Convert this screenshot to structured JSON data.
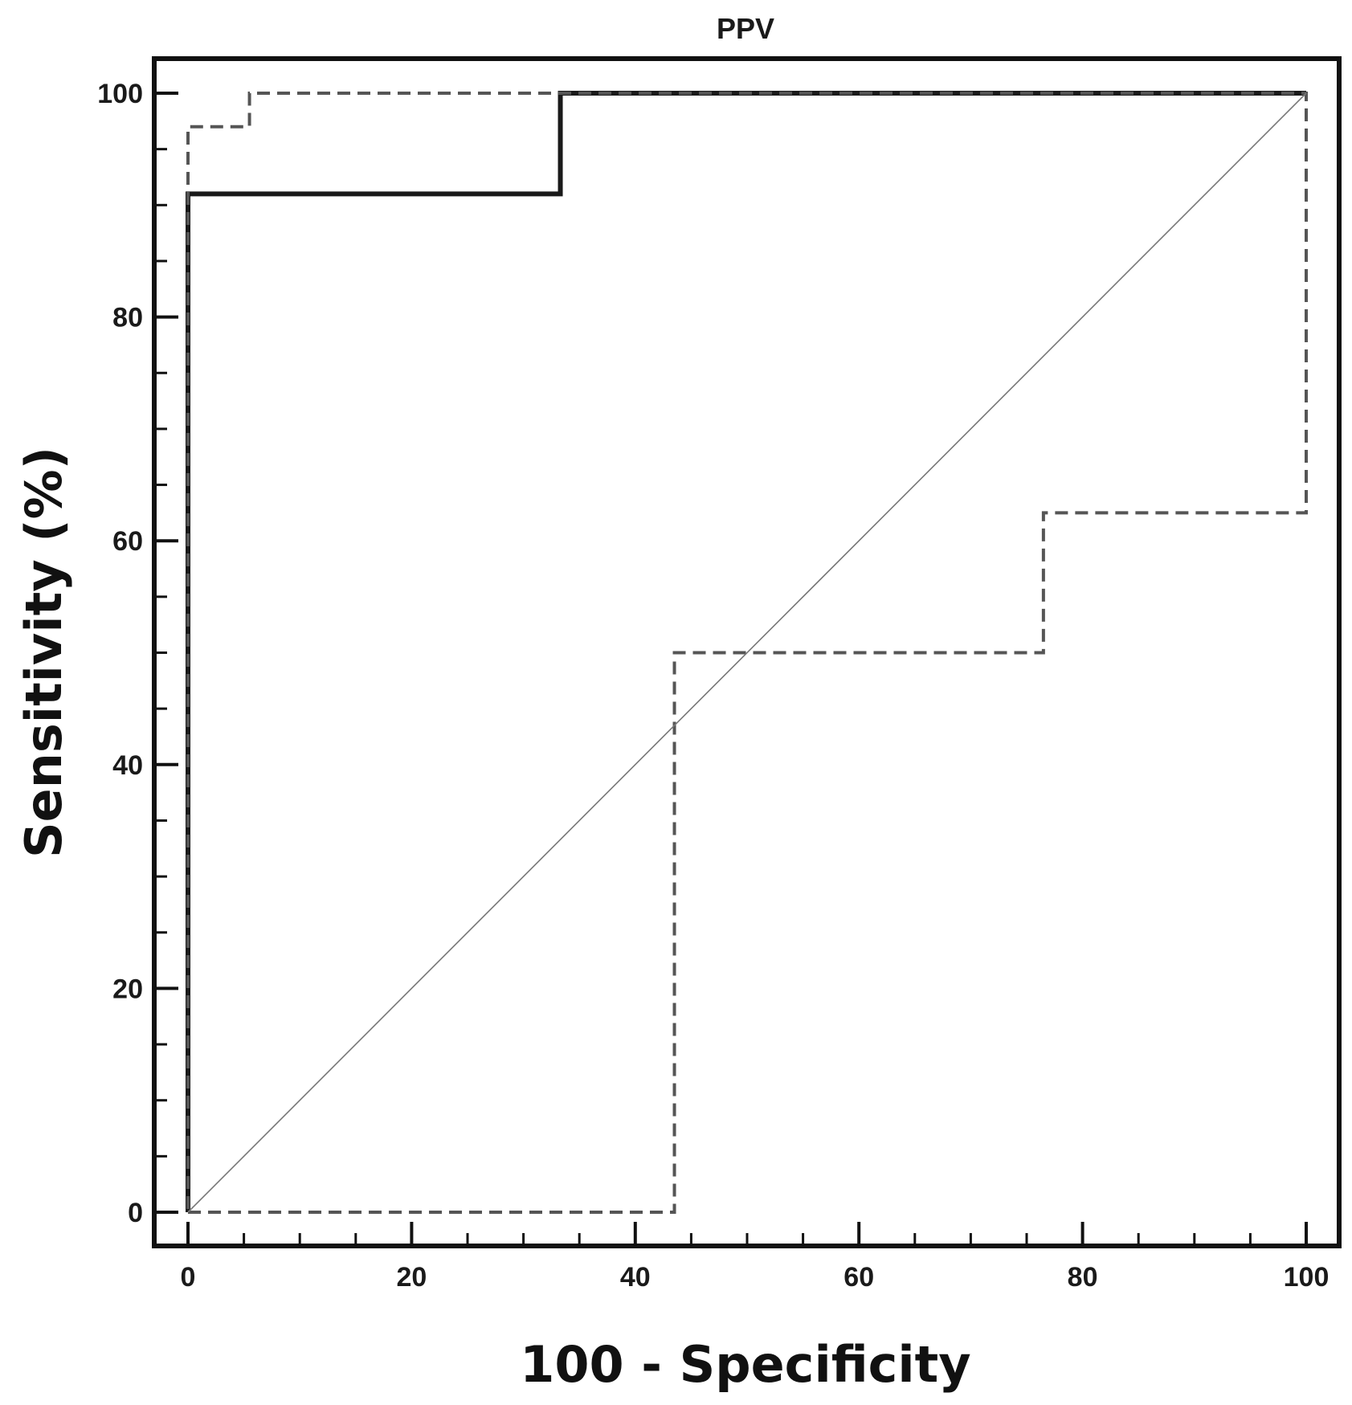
{
  "chart_data": {
    "type": "line",
    "title": "PPV",
    "xlabel": "100 - Specificity",
    "ylabel": "Sensitivity (%)",
    "xlim": [
      0,
      100
    ],
    "ylim": [
      0,
      100
    ],
    "x_ticks": [
      "0",
      "20",
      "40",
      "60",
      "80",
      "100"
    ],
    "y_ticks": [
      "0",
      "20",
      "40",
      "60",
      "80",
      "100"
    ],
    "grid": false,
    "series": [
      {
        "style": "solid",
        "color": "#1a1a1a",
        "x": [
          0,
          0,
          33.3,
          33.3,
          100
        ],
        "y": [
          0,
          91,
          91,
          100,
          100
        ]
      },
      {
        "style": "dashed",
        "color": "#555555",
        "x": [
          0,
          43.5,
          43.5,
          76.5,
          76.5,
          100,
          100,
          5.5,
          5.5,
          0,
          0
        ],
        "y": [
          0,
          0,
          50,
          50,
          62.5,
          62.5,
          100,
          100,
          97,
          97,
          0
        ]
      },
      {
        "style": "reference",
        "color": "#777777",
        "x": [
          0,
          100
        ],
        "y": [
          0,
          100
        ]
      }
    ]
  }
}
